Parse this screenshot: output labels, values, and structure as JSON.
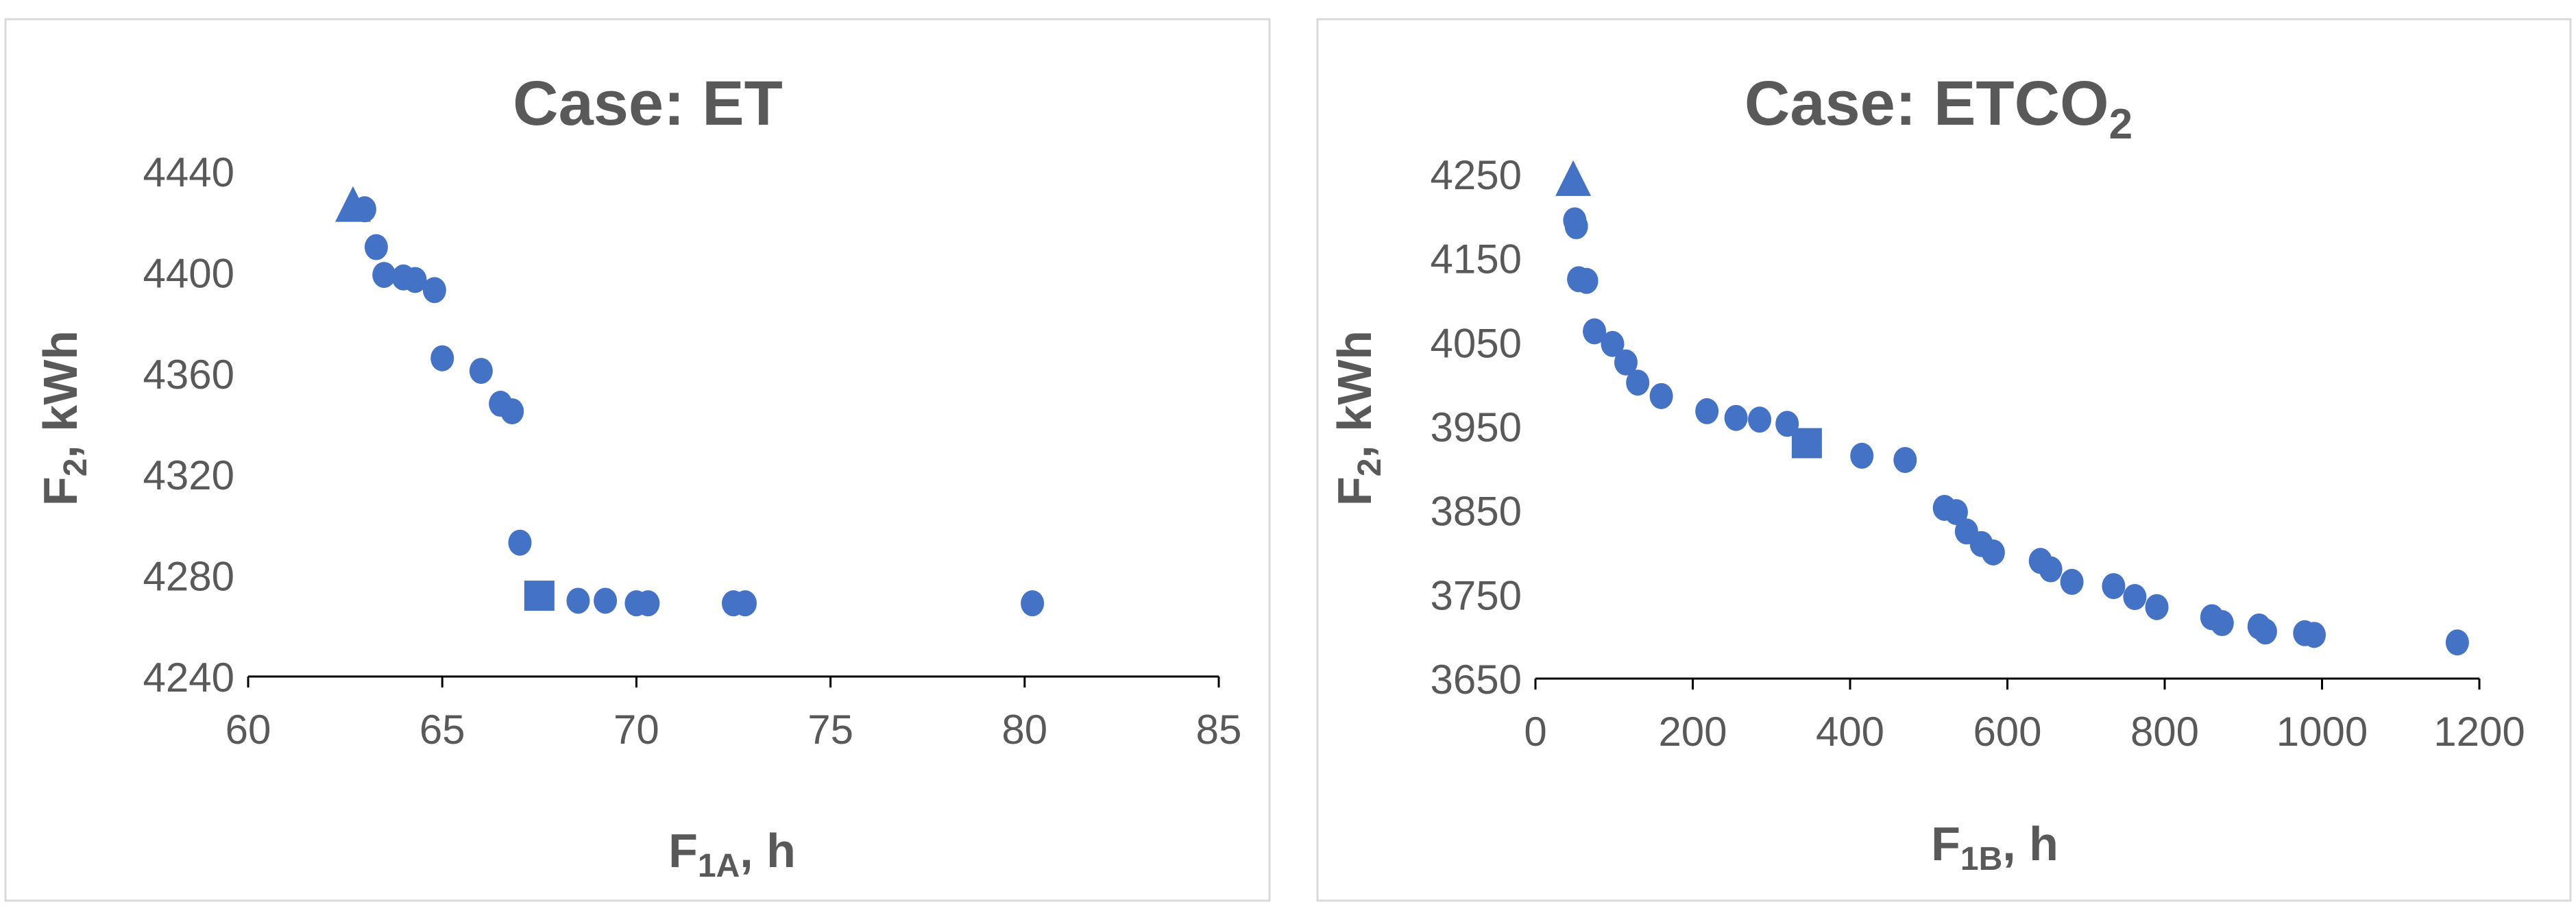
{
  "chart_data": [
    {
      "type": "scatter",
      "title": "Case: ET",
      "xlabel": "F1A, h",
      "ylabel": "F2, kWh",
      "xlim": [
        60,
        85
      ],
      "ylim": [
        4240,
        4440
      ],
      "xticks": [
        "60",
        "65",
        "70",
        "75",
        "80",
        "85"
      ],
      "yticks": [
        "4240",
        "4280",
        "4320",
        "4360",
        "4400",
        "4440"
      ],
      "grid": false,
      "legend": "none",
      "color": "#4472C4",
      "points": [
        [
          63.0,
          4425
        ],
        [
          63.3,
          4410
        ],
        [
          63.5,
          4399
        ],
        [
          64.0,
          4398
        ],
        [
          64.3,
          4397
        ],
        [
          64.8,
          4393
        ],
        [
          65.0,
          4366
        ],
        [
          66.0,
          4361
        ],
        [
          66.5,
          4348
        ],
        [
          66.8,
          4345
        ],
        [
          67.0,
          4293
        ],
        [
          68.5,
          4270
        ],
        [
          69.2,
          4270
        ],
        [
          70.0,
          4269
        ],
        [
          70.3,
          4269
        ],
        [
          72.5,
          4269
        ],
        [
          72.8,
          4269
        ],
        [
          80.2,
          4269
        ]
      ],
      "triangle": [
        62.7,
        4426
      ],
      "square": [
        67.5,
        4272
      ]
    },
    {
      "type": "scatter",
      "title": "Case: ETCO2",
      "xlabel": "F1B, h",
      "ylabel": "F2, kWh",
      "xlim": [
        0,
        1200
      ],
      "ylim": [
        3650,
        4250
      ],
      "xticks": [
        "0",
        "200",
        "400",
        "600",
        "800",
        "1000",
        "1200"
      ],
      "yticks": [
        "3650",
        "3750",
        "3850",
        "3950",
        "4050",
        "4150",
        "4250"
      ],
      "grid": false,
      "legend": "none",
      "color": "#4472C4",
      "points": [
        [
          50,
          4195
        ],
        [
          52,
          4188
        ],
        [
          55,
          4125
        ],
        [
          65,
          4123
        ],
        [
          75,
          4063
        ],
        [
          98,
          4048
        ],
        [
          115,
          4026
        ],
        [
          130,
          4002
        ],
        [
          160,
          3986
        ],
        [
          218,
          3968
        ],
        [
          255,
          3960
        ],
        [
          285,
          3958
        ],
        [
          320,
          3953
        ],
        [
          415,
          3915
        ],
        [
          470,
          3910
        ],
        [
          520,
          3853
        ],
        [
          535,
          3848
        ],
        [
          548,
          3825
        ],
        [
          567,
          3810
        ],
        [
          582,
          3800
        ],
        [
          642,
          3790
        ],
        [
          655,
          3780
        ],
        [
          682,
          3765
        ],
        [
          735,
          3760
        ],
        [
          762,
          3747
        ],
        [
          790,
          3735
        ],
        [
          860,
          3723
        ],
        [
          873,
          3716
        ],
        [
          920,
          3712
        ],
        [
          928,
          3706
        ],
        [
          978,
          3704
        ],
        [
          990,
          3702
        ],
        [
          1172,
          3693
        ]
      ],
      "triangle": [
        48,
        4242
      ],
      "square": [
        345,
        3930
      ]
    }
  ]
}
